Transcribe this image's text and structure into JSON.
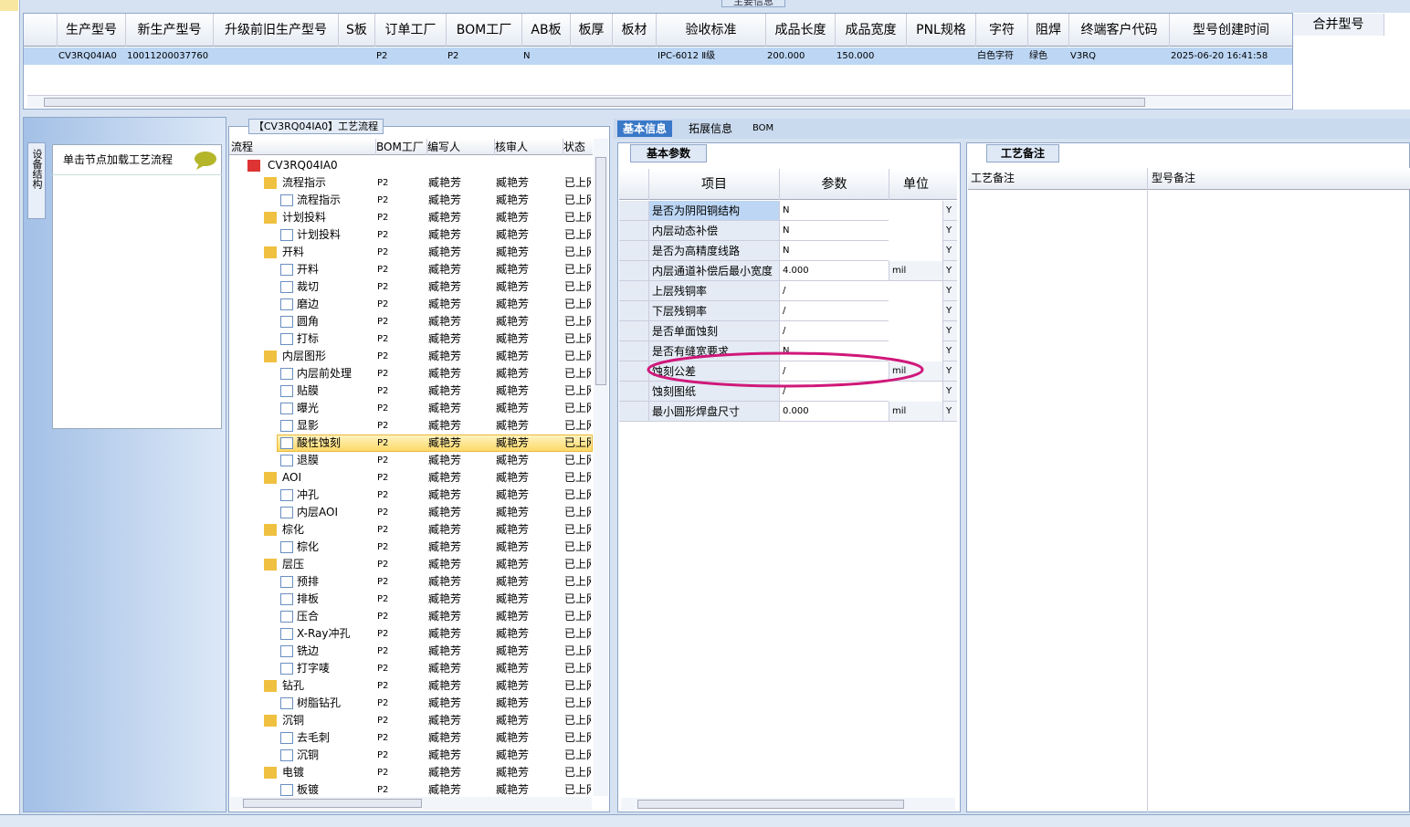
{
  "top_grid": {
    "caption": "主要信息",
    "columns": [
      "生产型号",
      "新生产型号",
      "升级前旧生产型号",
      "S板",
      "订单工厂",
      "BOM工厂",
      "AB板",
      "板厚",
      "板材",
      "验收标准",
      "成品长度",
      "成品宽度",
      "PNL规格",
      "字符",
      "阻焊",
      "终端客户代码",
      "型号创建时间"
    ],
    "row": [
      "CV3RQ04IA0",
      "10011200037760",
      null,
      null,
      "P2",
      "P2",
      "N",
      null,
      null,
      "IPC-6012 Ⅱ级",
      "200.000",
      "150.000",
      null,
      "白色字符",
      "绿色",
      "V3RQ",
      "2025-06-20 16:41:58"
    ],
    "side_column": "合并型号"
  },
  "left_panel": {
    "tab": "设备结构",
    "hint": "单击节点加载工艺流程"
  },
  "tree": {
    "caption": "【CV3RQ04IA0】工艺流程",
    "columns": [
      "流程",
      "BOM工厂",
      "编写人",
      "核审人",
      "状态"
    ],
    "selected": 16,
    "rows": [
      {
        "kind": "root",
        "cells": [
          "CV3RQ04IA0",
          null,
          null,
          null,
          null
        ]
      },
      {
        "kind": "folder",
        "cells": [
          "流程指示",
          "P2",
          "臧艳芳",
          "臧艳芳",
          "已上网"
        ]
      },
      {
        "kind": "doc",
        "cells": [
          "流程指示",
          "P2",
          "臧艳芳",
          "臧艳芳",
          "已上网"
        ]
      },
      {
        "kind": "folder",
        "cells": [
          "计划投料",
          "P2",
          "臧艳芳",
          "臧艳芳",
          "已上网"
        ]
      },
      {
        "kind": "doc",
        "cells": [
          "计划投料",
          "P2",
          "臧艳芳",
          "臧艳芳",
          "已上网"
        ]
      },
      {
        "kind": "folder",
        "cells": [
          "开料",
          "P2",
          "臧艳芳",
          "臧艳芳",
          "已上网"
        ]
      },
      {
        "kind": "doc",
        "cells": [
          "开料",
          "P2",
          "臧艳芳",
          "臧艳芳",
          "已上网"
        ]
      },
      {
        "kind": "doc",
        "cells": [
          "裁切",
          "P2",
          "臧艳芳",
          "臧艳芳",
          "已上网"
        ]
      },
      {
        "kind": "doc",
        "cells": [
          "磨边",
          "P2",
          "臧艳芳",
          "臧艳芳",
          "已上网"
        ]
      },
      {
        "kind": "doc",
        "cells": [
          "圆角",
          "P2",
          "臧艳芳",
          "臧艳芳",
          "已上网"
        ]
      },
      {
        "kind": "doc",
        "cells": [
          "打标",
          "P2",
          "臧艳芳",
          "臧艳芳",
          "已上网"
        ]
      },
      {
        "kind": "folder",
        "cells": [
          "内层图形",
          "P2",
          "臧艳芳",
          "臧艳芳",
          "已上网"
        ]
      },
      {
        "kind": "doc",
        "cells": [
          "内层前处理",
          "P2",
          "臧艳芳",
          "臧艳芳",
          "已上网"
        ]
      },
      {
        "kind": "doc",
        "cells": [
          "贴膜",
          "P2",
          "臧艳芳",
          "臧艳芳",
          "已上网"
        ]
      },
      {
        "kind": "doc",
        "cells": [
          "曝光",
          "P2",
          "臧艳芳",
          "臧艳芳",
          "已上网"
        ]
      },
      {
        "kind": "doc",
        "cells": [
          "显影",
          "P2",
          "臧艳芳",
          "臧艳芳",
          "已上网"
        ]
      },
      {
        "kind": "doc",
        "cells": [
          "酸性蚀刻",
          "P2",
          "臧艳芳",
          "臧艳芳",
          "已上网"
        ]
      },
      {
        "kind": "doc",
        "cells": [
          "退膜",
          "P2",
          "臧艳芳",
          "臧艳芳",
          "已上网"
        ]
      },
      {
        "kind": "folder",
        "cells": [
          "AOI",
          "P2",
          "臧艳芳",
          "臧艳芳",
          "已上网"
        ]
      },
      {
        "kind": "doc",
        "cells": [
          "冲孔",
          "P2",
          "臧艳芳",
          "臧艳芳",
          "已上网"
        ]
      },
      {
        "kind": "doc",
        "cells": [
          "内层AOI",
          "P2",
          "臧艳芳",
          "臧艳芳",
          "已上网"
        ]
      },
      {
        "kind": "folder",
        "cells": [
          "棕化",
          "P2",
          "臧艳芳",
          "臧艳芳",
          "已上网"
        ]
      },
      {
        "kind": "doc",
        "cells": [
          "棕化",
          "P2",
          "臧艳芳",
          "臧艳芳",
          "已上网"
        ]
      },
      {
        "kind": "folder",
        "cells": [
          "层压",
          "P2",
          "臧艳芳",
          "臧艳芳",
          "已上网"
        ]
      },
      {
        "kind": "doc",
        "cells": [
          "预排",
          "P2",
          "臧艳芳",
          "臧艳芳",
          "已上网"
        ]
      },
      {
        "kind": "doc",
        "cells": [
          "排板",
          "P2",
          "臧艳芳",
          "臧艳芳",
          "已上网"
        ]
      },
      {
        "kind": "doc",
        "cells": [
          "压合",
          "P2",
          "臧艳芳",
          "臧艳芳",
          "已上网"
        ]
      },
      {
        "kind": "doc",
        "cells": [
          "X-Ray冲孔",
          "P2",
          "臧艳芳",
          "臧艳芳",
          "已上网"
        ]
      },
      {
        "kind": "doc",
        "cells": [
          "铣边",
          "P2",
          "臧艳芳",
          "臧艳芳",
          "已上网"
        ]
      },
      {
        "kind": "doc",
        "cells": [
          "打字唛",
          "P2",
          "臧艳芳",
          "臧艳芳",
          "已上网"
        ]
      },
      {
        "kind": "folder",
        "cells": [
          "钻孔",
          "P2",
          "臧艳芳",
          "臧艳芳",
          "已上网"
        ]
      },
      {
        "kind": "doc",
        "cells": [
          "树脂钻孔",
          "P2",
          "臧艳芳",
          "臧艳芳",
          "已上网"
        ]
      },
      {
        "kind": "folder",
        "cells": [
          "沉铜",
          "P2",
          "臧艳芳",
          "臧艳芳",
          "已上网"
        ]
      },
      {
        "kind": "doc",
        "cells": [
          "去毛刺",
          "P2",
          "臧艳芳",
          "臧艳芳",
          "已上网"
        ]
      },
      {
        "kind": "doc",
        "cells": [
          "沉铜",
          "P2",
          "臧艳芳",
          "臧艳芳",
          "已上网"
        ]
      },
      {
        "kind": "folder",
        "cells": [
          "电镀",
          "P2",
          "臧艳芳",
          "臧艳芳",
          "已上网"
        ]
      },
      {
        "kind": "doc",
        "cells": [
          "板镀",
          "P2",
          "臧艳芳",
          "臧艳芳",
          "已上网"
        ]
      }
    ]
  },
  "detail": {
    "tabs": [
      "基本信息",
      "拓展信息",
      "BOM"
    ],
    "subtab": "基本参数",
    "columns": [
      "项目",
      "参数",
      "单位"
    ],
    "rows": [
      [
        "是否为阴阳铜结构",
        "N",
        null,
        "Y"
      ],
      [
        "内层动态补偿",
        "N",
        null,
        "Y"
      ],
      [
        "是否为高精度线路",
        "N",
        null,
        "Y"
      ],
      [
        "内层通道补偿后最小宽度",
        "4.000",
        "mil",
        "Y"
      ],
      [
        "上层残铜率",
        "/",
        null,
        "Y"
      ],
      [
        "下层残铜率",
        "/",
        null,
        "Y"
      ],
      [
        "是否单面蚀刻",
        "/",
        null,
        "Y"
      ],
      [
        "是否有缝宽要求",
        "N",
        null,
        "Y"
      ],
      [
        "蚀刻公差",
        "/",
        "mil",
        "Y"
      ],
      [
        "蚀刻图纸",
        "/",
        null,
        "Y"
      ],
      [
        "最小圆形焊盘尺寸",
        "0.000",
        "mil",
        "Y"
      ]
    ]
  },
  "notes": {
    "tab": "工艺备注",
    "columns": [
      "工艺备注",
      "型号备注"
    ]
  }
}
